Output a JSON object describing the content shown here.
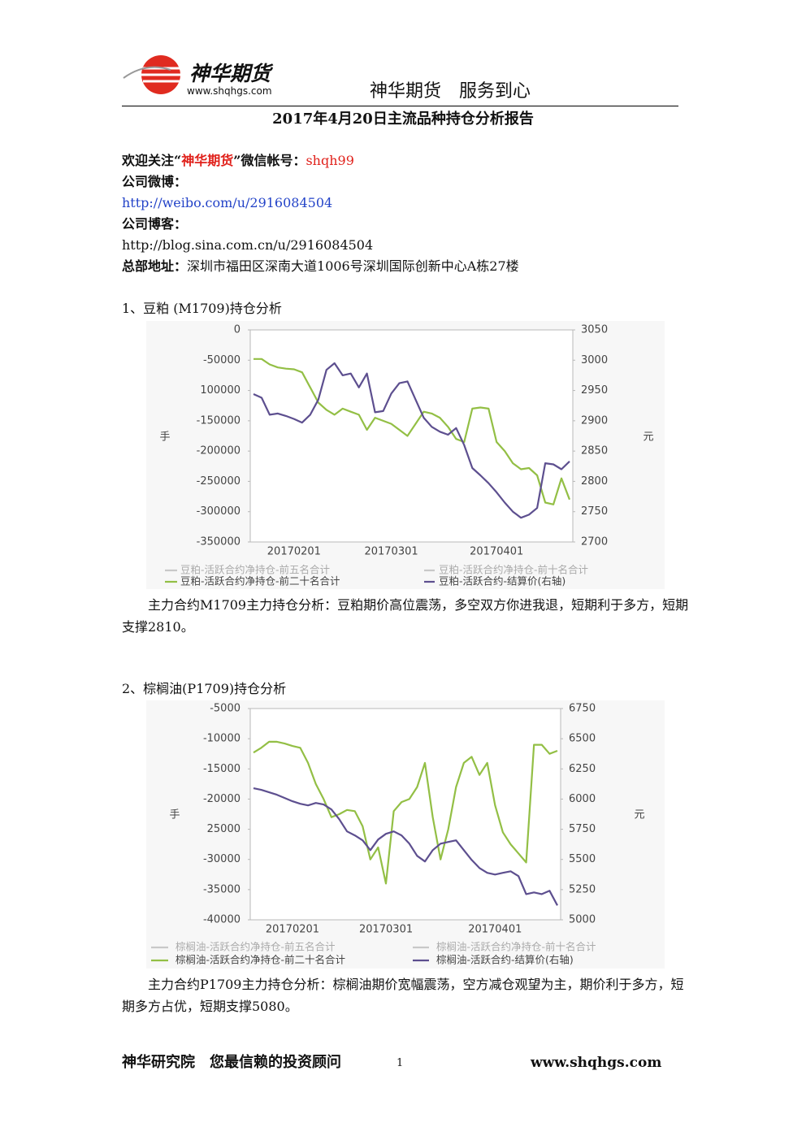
{
  "header": {
    "logo_name": "神华期货",
    "logo_url": "www.shqhgs.com",
    "slogan": "神华期货　服务到心",
    "title": "2017年4月20日主流品种持仓分析报告"
  },
  "contact": {
    "wechat_prefix": "欢迎关注“",
    "wechat_name": "神华期货",
    "wechat_mid": "”微信帐号：",
    "wechat_id": "shqh99",
    "weibo_label": "公司微博：",
    "weibo_url": "http://weibo.com/u/2916084504",
    "blog_label": "公司博客：",
    "blog_url": "http://blog.sina.com.cn/u/2916084504",
    "address_label": "总部地址：",
    "address": "深圳市福田区深南大道1006号深圳国际创新中心A栋27楼"
  },
  "sections": [
    {
      "heading": "1、豆粕 (M1709)持仓分析",
      "analysis": "主力合约M1709主力持仓分析：豆粕期价高位震荡，多空双方你进我退，短期利于多方，短期支撑2810。"
    },
    {
      "heading": "2、棕榈油(P1709)持仓分析",
      "analysis": "主力合约P1709主力持仓分析：棕榈油期价宽幅震荡，空方减仓观望为主，期价利于多方，短期多方占优，短期支撑5080。"
    }
  ],
  "chart_data": [
    {
      "type": "line",
      "y_label": "手",
      "y2_label": "元",
      "legend": "bottom",
      "categories": [
        null,
        null,
        null,
        null,
        null,
        "20170201",
        null,
        null,
        null,
        null,
        null,
        null,
        null,
        null,
        null,
        null,
        null,
        "20170301",
        null,
        null,
        null,
        null,
        null,
        null,
        null,
        null,
        null,
        null,
        null,
        null,
        "20170401",
        null,
        null,
        null,
        null,
        null,
        null,
        null,
        null,
        null
      ],
      "ylim": [
        -350000,
        0
      ],
      "yticks": [
        0,
        -50000,
        {
          "value": -100000,
          "label": "100000"
        },
        -150000,
        -200000,
        -250000,
        -300000,
        -350000
      ],
      "y2lim": [
        2700,
        3050
      ],
      "y2ticks": [
        2700,
        2750,
        2800,
        2850,
        2900,
        2950,
        3000,
        3050
      ],
      "series": [
        {
          "name": "豆粕-活跃合约净持仓-前五名合计",
          "color": "#c8c8c8",
          "values": [
            null,
            null,
            null,
            null,
            null,
            null,
            null,
            null,
            null,
            null,
            null,
            null,
            null,
            null,
            null,
            null,
            null,
            null,
            null,
            null,
            null,
            null,
            null,
            null,
            null,
            null,
            null,
            null,
            null,
            null,
            null,
            null,
            null,
            null,
            null,
            null,
            null,
            null,
            null,
            null
          ]
        },
        {
          "name": "豆粕-活跃合约净持仓-前十名合计",
          "color": "#c8c8c8",
          "values": [
            null,
            null,
            null,
            null,
            null,
            null,
            null,
            null,
            null,
            null,
            null,
            null,
            null,
            null,
            null,
            null,
            null,
            null,
            null,
            null,
            null,
            null,
            null,
            null,
            null,
            null,
            null,
            null,
            null,
            null,
            null,
            null,
            null,
            null,
            null,
            null,
            null,
            null,
            null,
            null
          ]
        },
        {
          "name": "豆粕-活跃合约净持仓-前二十名合计",
          "color": "#93bf45",
          "values": [
            -48000,
            -48000,
            -57000,
            -62000,
            -64000,
            -65000,
            -70000,
            -95000,
            -120000,
            -132000,
            -140000,
            -130000,
            -135000,
            -140000,
            -165000,
            -145000,
            -150000,
            -155000,
            -165000,
            -175000,
            -155000,
            -135000,
            -138000,
            -145000,
            -160000,
            -180000,
            -185000,
            -130000,
            -128000,
            -130000,
            -185000,
            -200000,
            -220000,
            -230000,
            -228000,
            -240000,
            -285000,
            -288000,
            -245000,
            -280000
          ]
        },
        {
          "name": "豆粕-活跃合约-结算价(右轴)",
          "color": "#5d4f8f",
          "axis": "y2",
          "values": [
            2944,
            2938,
            2910,
            2912,
            2908,
            2903,
            2897,
            2910,
            2935,
            2984,
            2995,
            2975,
            2978,
            2955,
            2978,
            2914,
            2916,
            2945,
            2962,
            2965,
            2935,
            2905,
            2890,
            2882,
            2877,
            2888,
            2860,
            2822,
            2810,
            2797,
            2782,
            2765,
            2750,
            2740,
            2745,
            2756,
            2830,
            2828,
            2820,
            2833
          ]
        }
      ]
    },
    {
      "type": "line",
      "y_label": "手",
      "y2_label": "元",
      "legend": "bottom",
      "categories": [
        null,
        null,
        null,
        null,
        null,
        "20170201",
        null,
        null,
        null,
        null,
        null,
        null,
        null,
        null,
        null,
        null,
        null,
        "20170301",
        null,
        null,
        null,
        null,
        null,
        null,
        null,
        null,
        null,
        null,
        null,
        null,
        null,
        "20170401",
        null,
        null,
        null,
        null,
        null,
        null,
        null,
        null
      ],
      "ylim": [
        -40000,
        -5000
      ],
      "yticks": [
        -5000,
        -10000,
        -15000,
        -20000,
        {
          "value": -25000,
          "label": "25000"
        },
        -30000,
        -35000,
        -40000
      ],
      "y2lim": [
        5000,
        6750
      ],
      "y2ticks": [
        5000,
        5250,
        5500,
        5750,
        6000,
        6250,
        6500,
        6750
      ],
      "series": [
        {
          "name": "棕榈油-活跃合约净持仓-前五名合计",
          "color": "#c8c8c8",
          "values": [
            null,
            null,
            null,
            null,
            null,
            null,
            null,
            null,
            null,
            null,
            null,
            null,
            null,
            null,
            null,
            null,
            null,
            null,
            null,
            null,
            null,
            null,
            null,
            null,
            null,
            null,
            null,
            null,
            null,
            null,
            null,
            null,
            null,
            null,
            null,
            null,
            null,
            null,
            null,
            null
          ]
        },
        {
          "name": "棕榈油-活跃合约净持仓-前十名合计",
          "color": "#c8c8c8",
          "values": [
            null,
            null,
            null,
            null,
            null,
            null,
            null,
            null,
            null,
            null,
            null,
            null,
            null,
            null,
            null,
            null,
            null,
            null,
            null,
            null,
            null,
            null,
            null,
            null,
            null,
            null,
            null,
            null,
            null,
            null,
            null,
            null,
            null,
            null,
            null,
            null,
            null,
            null,
            null,
            null
          ]
        },
        {
          "name": "棕榈油-活跃合约净持仓-前二十名合计",
          "color": "#93bf45",
          "values": [
            -12300,
            -11500,
            -10500,
            -10500,
            -10800,
            -11200,
            -11500,
            -14000,
            -17500,
            -20000,
            -23000,
            -22500,
            -21800,
            -22000,
            -24500,
            -30000,
            -28000,
            -34000,
            -22000,
            -20500,
            -20000,
            -18000,
            -14000,
            -23000,
            -30000,
            -25000,
            -18000,
            -14000,
            -13000,
            -16000,
            -14000,
            -21000,
            -25500,
            -27500,
            -29000,
            -30500,
            -11000,
            -11000,
            -12500,
            -12000
          ]
        },
        {
          "name": "棕榈油-活跃合约-结算价(右轴)",
          "color": "#5d4f8f",
          "axis": "y2",
          "values": [
            6090,
            6076,
            6056,
            6036,
            6009,
            5982,
            5961,
            5948,
            5968,
            5955,
            5914,
            5833,
            5732,
            5699,
            5658,
            5577,
            5665,
            5712,
            5732,
            5699,
            5631,
            5530,
            5483,
            5577,
            5631,
            5645,
            5658,
            5577,
            5496,
            5429,
            5389,
            5375,
            5389,
            5402,
            5362,
            5213,
            5227,
            5213,
            5240,
            5119
          ]
        }
      ]
    }
  ],
  "footer": {
    "left": "神华研究院　您最信赖的投资顾问",
    "page": "1",
    "right": "www.shqhgs.com"
  }
}
